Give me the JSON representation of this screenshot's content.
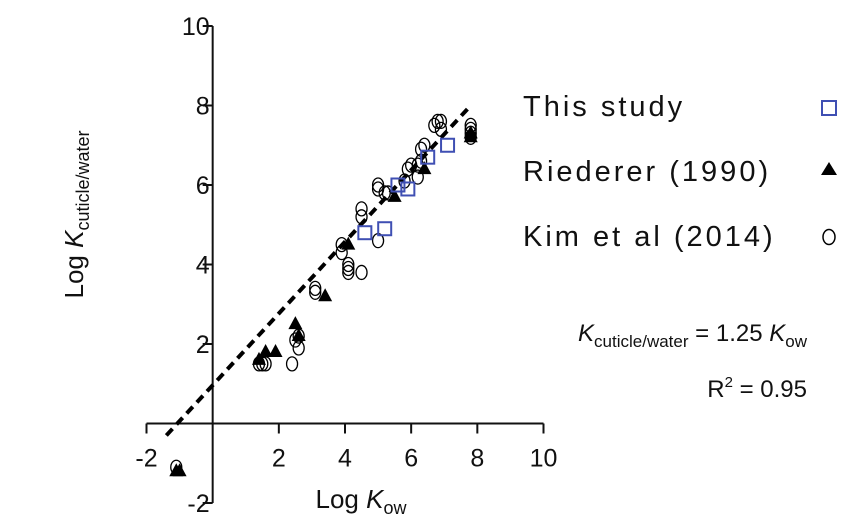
{
  "chart_data": {
    "type": "scatter",
    "xlabel": {
      "prefix": "Log ",
      "var": "K",
      "sub": "ow"
    },
    "ylabel": {
      "prefix": "Log ",
      "var": "K",
      "sub": "cuticle/water"
    },
    "xlim": [
      -2,
      10
    ],
    "ylim": [
      -2,
      10
    ],
    "x_ticks": [
      -2,
      2,
      4,
      6,
      8,
      10
    ],
    "y_ticks": [
      -2,
      2,
      4,
      6,
      8,
      10
    ],
    "legend_position": "right",
    "fit_line": {
      "style": "dashed",
      "x": [
        -1.4,
        7.8
      ],
      "y": [
        -0.3,
        8.0
      ]
    },
    "annotations": {
      "equation": {
        "lhs_var": "K",
        "lhs_sub": "cuticle/water",
        "mid": " = 1.25 ",
        "rhs_var": "K",
        "rhs_sub": "ow"
      },
      "r2": {
        "base": "R",
        "sup": "2",
        "rest": " = 0.95"
      }
    },
    "series": [
      {
        "name": "This study",
        "marker": "open-square",
        "color": "#3f4fb3",
        "points": [
          [
            4.6,
            4.8
          ],
          [
            5.2,
            4.9
          ],
          [
            5.6,
            6.0
          ],
          [
            5.9,
            5.9
          ],
          [
            6.5,
            6.7
          ],
          [
            7.1,
            7.0
          ]
        ]
      },
      {
        "name": "Riederer (1990)",
        "marker": "filled-triangle",
        "color": "#000000",
        "points": [
          [
            -1.1,
            -1.2
          ],
          [
            -1.0,
            -1.2
          ],
          [
            1.4,
            1.6
          ],
          [
            1.6,
            1.8
          ],
          [
            1.9,
            1.8
          ],
          [
            2.5,
            2.5
          ],
          [
            2.6,
            2.2
          ],
          [
            3.4,
            3.2
          ],
          [
            4.1,
            4.5
          ],
          [
            5.5,
            5.7
          ],
          [
            6.4,
            6.4
          ],
          [
            7.8,
            7.2
          ],
          [
            7.8,
            7.3
          ]
        ]
      },
      {
        "name": "Kim et al (2014)",
        "marker": "open-circle",
        "color": "#000000",
        "points": [
          [
            -1.1,
            -1.1
          ],
          [
            1.4,
            1.5
          ],
          [
            1.5,
            1.5
          ],
          [
            1.6,
            1.5
          ],
          [
            2.4,
            1.5
          ],
          [
            2.5,
            2.1
          ],
          [
            2.6,
            1.9
          ],
          [
            2.6,
            2.2
          ],
          [
            3.1,
            3.3
          ],
          [
            3.1,
            3.4
          ],
          [
            3.9,
            4.3
          ],
          [
            3.9,
            4.5
          ],
          [
            4.1,
            3.8
          ],
          [
            4.1,
            3.9
          ],
          [
            4.1,
            4.0
          ],
          [
            4.5,
            3.8
          ],
          [
            4.5,
            5.2
          ],
          [
            4.5,
            5.4
          ],
          [
            5.0,
            4.6
          ],
          [
            5.0,
            5.9
          ],
          [
            5.0,
            6.0
          ],
          [
            5.2,
            5.8
          ],
          [
            5.3,
            5.8
          ],
          [
            5.8,
            6.1
          ],
          [
            5.9,
            6.4
          ],
          [
            6.0,
            6.5
          ],
          [
            6.2,
            6.2
          ],
          [
            6.2,
            6.5
          ],
          [
            6.3,
            6.6
          ],
          [
            6.3,
            6.9
          ],
          [
            6.4,
            7.0
          ],
          [
            6.7,
            7.5
          ],
          [
            6.8,
            7.6
          ],
          [
            6.9,
            7.4
          ],
          [
            6.9,
            7.6
          ],
          [
            7.8,
            7.2
          ],
          [
            7.8,
            7.3
          ],
          [
            7.8,
            7.4
          ],
          [
            7.8,
            7.5
          ]
        ]
      }
    ]
  }
}
